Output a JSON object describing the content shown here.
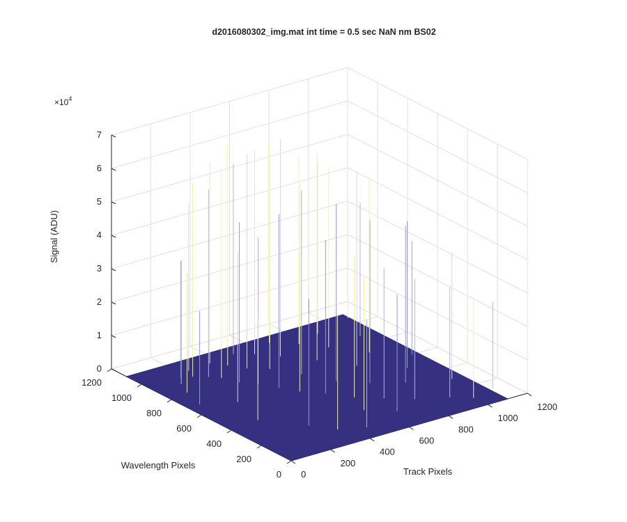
{
  "chart_data": {
    "type": "surface",
    "title": "d2016080302_img.mat int time = 0.5 sec  NaN nm BS02",
    "xlabel": "Track Pixels",
    "ylabel": "Wavelength Pixels",
    "zlabel": "Signal (ADU)",
    "z_exponent_label": "×10",
    "z_exponent_power": "4",
    "xlim": [
      0,
      1200
    ],
    "ylim": [
      0,
      1200
    ],
    "zlim": [
      0,
      70000
    ],
    "x_ticks": [
      "0",
      "200",
      "400",
      "600",
      "800",
      "1000",
      "1200"
    ],
    "y_ticks": [
      "0",
      "200",
      "400",
      "600",
      "800",
      "1000",
      "1200"
    ],
    "z_ticks": [
      "0",
      "1",
      "2",
      "3",
      "4",
      "5",
      "6",
      "7"
    ],
    "grid": true,
    "surface_color": "#35307f",
    "base_level": 0,
    "spikes": [
      {
        "x": 60,
        "y": 690,
        "z": 28000,
        "c": "#9a98d4"
      },
      {
        "x": 95,
        "y": 820,
        "z": 36000,
        "c": "#f2f2b0"
      },
      {
        "x": 130,
        "y": 905,
        "z": 37000,
        "c": "#b4b2e0"
      },
      {
        "x": 170,
        "y": 960,
        "z": 35000,
        "c": "#9a98d4"
      },
      {
        "x": 215,
        "y": 940,
        "z": 58000,
        "c": "#f2f2b0"
      },
      {
        "x": 240,
        "y": 1000,
        "z": 50000,
        "c": "#d8d6ee"
      },
      {
        "x": 265,
        "y": 900,
        "z": 56000,
        "c": "#b4b2e0"
      },
      {
        "x": 300,
        "y": 860,
        "z": 62000,
        "c": "#f2f2b0"
      },
      {
        "x": 330,
        "y": 780,
        "z": 48000,
        "c": "#9a98d4"
      },
      {
        "x": 355,
        "y": 1010,
        "z": 60000,
        "c": "#e8e8c8"
      },
      {
        "x": 380,
        "y": 720,
        "z": 44000,
        "c": "#b4b2e0"
      },
      {
        "x": 400,
        "y": 950,
        "z": 66000,
        "c": "#f2f2b0"
      },
      {
        "x": 425,
        "y": 640,
        "z": 52000,
        "c": "#9a98d4"
      },
      {
        "x": 445,
        "y": 880,
        "z": 64000,
        "c": "#d8d6ee"
      },
      {
        "x": 470,
        "y": 560,
        "z": 41000,
        "c": "#f2f2b0"
      },
      {
        "x": 490,
        "y": 1030,
        "z": 57000,
        "c": "#b4b2e0"
      },
      {
        "x": 515,
        "y": 820,
        "z": 63000,
        "c": "#f2f2b0"
      },
      {
        "x": 540,
        "y": 480,
        "z": 46000,
        "c": "#9a98d4"
      },
      {
        "x": 560,
        "y": 980,
        "z": 61000,
        "c": "#e8e8c8"
      },
      {
        "x": 585,
        "y": 700,
        "z": 55000,
        "c": "#b4b2e0"
      },
      {
        "x": 610,
        "y": 380,
        "z": 42000,
        "c": "#f2f2b0"
      },
      {
        "x": 630,
        "y": 900,
        "z": 65000,
        "c": "#d8d6ee"
      },
      {
        "x": 655,
        "y": 560,
        "z": 53000,
        "c": "#9a98d4"
      },
      {
        "x": 680,
        "y": 1040,
        "z": 59000,
        "c": "#f2f2b0"
      },
      {
        "x": 700,
        "y": 300,
        "z": 39000,
        "c": "#b4b2e0"
      },
      {
        "x": 725,
        "y": 780,
        "z": 62000,
        "c": "#e8e8c8"
      },
      {
        "x": 750,
        "y": 460,
        "z": 49000,
        "c": "#9a98d4"
      },
      {
        "x": 770,
        "y": 960,
        "z": 56000,
        "c": "#f2f2b0"
      },
      {
        "x": 795,
        "y": 220,
        "z": 36000,
        "c": "#b4b2e0"
      },
      {
        "x": 820,
        "y": 640,
        "z": 58000,
        "c": "#d8d6ee"
      },
      {
        "x": 845,
        "y": 860,
        "z": 54000,
        "c": "#f2f2b0"
      },
      {
        "x": 870,
        "y": 380,
        "z": 47000,
        "c": "#9a98d4"
      },
      {
        "x": 895,
        "y": 1000,
        "z": 51000,
        "c": "#e8e8c8"
      },
      {
        "x": 920,
        "y": 150,
        "z": 33000,
        "c": "#b4b2e0"
      },
      {
        "x": 945,
        "y": 720,
        "z": 52000,
        "c": "#f2f2b0"
      },
      {
        "x": 970,
        "y": 500,
        "z": 44000,
        "c": "#9a98d4"
      },
      {
        "x": 995,
        "y": 90,
        "z": 30000,
        "c": "#f2f2b0"
      },
      {
        "x": 1020,
        "y": 880,
        "z": 40000,
        "c": "#b4b2e0"
      },
      {
        "x": 1045,
        "y": 300,
        "z": 38000,
        "c": "#d8d6ee"
      },
      {
        "x": 1070,
        "y": 600,
        "z": 34000,
        "c": "#9a98d4"
      },
      {
        "x": 1095,
        "y": 1060,
        "z": 37000,
        "c": "#f2f2b0"
      },
      {
        "x": 1115,
        "y": 120,
        "z": 26000,
        "c": "#b4b2e0"
      },
      {
        "x": 150,
        "y": 420,
        "z": 30000,
        "c": "#e8e8c8"
      },
      {
        "x": 280,
        "y": 250,
        "z": 38000,
        "c": "#9a98d4"
      },
      {
        "x": 350,
        "y": 150,
        "z": 34000,
        "c": "#f2f2b0"
      },
      {
        "x": 460,
        "y": 100,
        "z": 32000,
        "c": "#b4b2e0"
      },
      {
        "x": 200,
        "y": 620,
        "z": 45000,
        "c": "#d8d6ee"
      },
      {
        "x": 560,
        "y": 250,
        "z": 40000,
        "c": "#f2f2b0"
      },
      {
        "x": 660,
        "y": 160,
        "z": 35000,
        "c": "#9a98d4"
      },
      {
        "x": 880,
        "y": 1100,
        "z": 43000,
        "c": "#f2f2b0"
      }
    ]
  }
}
